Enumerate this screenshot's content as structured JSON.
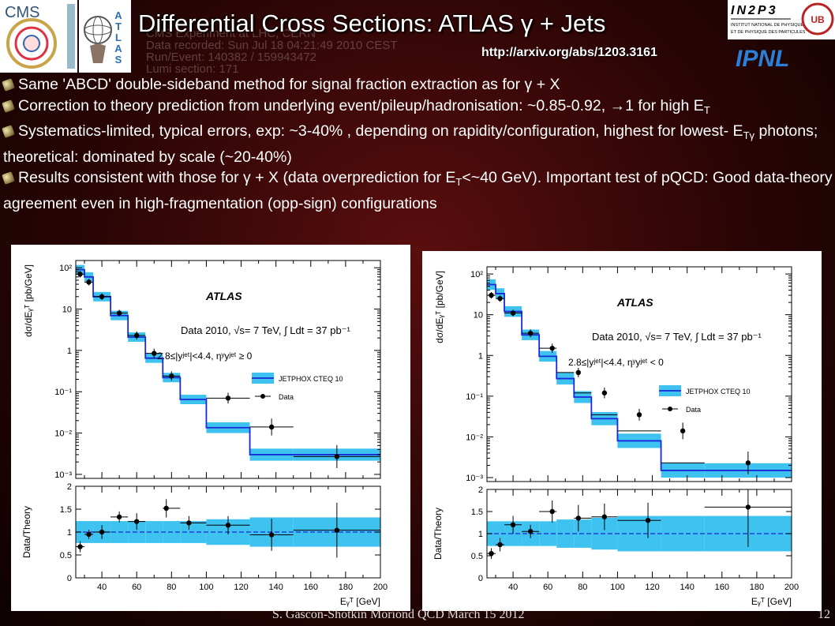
{
  "slide": {
    "title": "Differential Cross Sections: ATLAS γ + Jets",
    "url": "http://arxiv.org/abs/1203.3161",
    "background_event_text": [
      "CMS Experiment at LHC, CERN",
      "Data recorded: Sun Jul 18 04:21:49 2010 CEST",
      "Run/Event: 140382 / 159943472",
      "Lumi section: 171"
    ],
    "footer": "S. Gascon-Shotkin Moriond QCD March 15 2012",
    "page_number": "12",
    "logos": {
      "cms": "CMS",
      "atlas": "ATLAS",
      "in2p3": "IN2P3",
      "ipnl": "IPNL"
    },
    "bullets": [
      {
        "segments": [
          {
            "t": "Same 'ABCD' double-sideband method for signal fraction extraction as for γ + X"
          }
        ]
      },
      {
        "segments": [
          {
            "t": "Correction to theory prediction from underlying event/pileup/hadronisation: ~0.85-0.92, →1 for high E"
          },
          {
            "t": "T",
            "sub": true
          }
        ]
      },
      {
        "segments": [
          {
            "t": "Systematics-limited,   typical errors, exp:  ~3-40% , depending on rapidity/configuration, highest  for lowest- E"
          },
          {
            "t": "Tγ",
            "sub": true
          },
          {
            "t": " photons; theoretical: dominated by scale (~20-40%)"
          }
        ]
      },
      {
        "segments": [
          {
            "t": "Results consistent with those for γ + X (data overprediction for E"
          },
          {
            "t": "T",
            "sub": true
          },
          {
            "t": "<~40 GeV).  Important test of pQCD:  Good data-theory agreement even in high-fragmentation (opp-sign) configurations"
          }
        ]
      }
    ]
  },
  "chart_data": [
    {
      "type": "line",
      "atlas_label": "ATLAS",
      "info_line1": "Data 2010, √s= 7 TeV, ∫ Ldt = 37 pb⁻¹",
      "info_line2": "2.8≤|yʲᵉᵗ|<4.4, ηʸyʲᵉᵗ ≥ 0",
      "legend": [
        "JETPHOX CTEQ 10",
        "Data"
      ],
      "legend_position": "right",
      "xlabel": "Eᵧᵀ [GeV]",
      "ylabel_top": "dσ/dEᵧᵀ [pb/GeV]",
      "ylabel_bottom": "Data/Theory",
      "xlim": [
        25,
        200
      ],
      "ylim_top": [
        0.0008,
        150
      ],
      "ylim_bottom": [
        0,
        2
      ],
      "x_ticks": [
        "40",
        "60",
        "80",
        "100",
        "120",
        "140",
        "160",
        "180",
        "200"
      ],
      "y_ticks_top": [
        "10⁻³",
        "10⁻²",
        "10⁻¹",
        "1",
        "10",
        "10²"
      ],
      "y_ticks_bottom": [
        "0",
        "0.5",
        "1",
        "1.5",
        "2"
      ],
      "bin_edges": [
        25,
        30,
        35,
        45,
        55,
        65,
        75,
        85,
        100,
        125,
        150,
        200
      ],
      "theory": [
        90,
        60,
        20,
        7,
        2.1,
        0.65,
        0.22,
        0.065,
        0.0135,
        0.003,
        0.003
      ],
      "theory_band_frac": [
        0.3,
        0.3,
        0.3,
        0.3,
        0.3,
        0.3,
        0.3,
        0.3,
        0.35,
        0.4,
        0.4
      ],
      "data_x": [
        27.5,
        32.5,
        40,
        50,
        60,
        70,
        80,
        92.5,
        112.5,
        137.5,
        175
      ],
      "data_y": [
        70,
        45,
        20,
        8,
        2.3,
        0.85,
        0.24,
        null,
        0.07,
        0.014,
        0.0027
      ],
      "data_y_err": [
        0.2,
        0.2,
        0.2,
        0.2,
        0.25,
        0.3,
        0.3,
        0.3,
        0.35,
        0.6,
        0.9
      ],
      "ratio_x": [
        27.5,
        32.5,
        40,
        50,
        60,
        77,
        90,
        112.5,
        137.5,
        175
      ],
      "ratio_y": [
        0.68,
        0.95,
        1.0,
        1.33,
        1.23,
        1.52,
        1.2,
        1.15,
        0.94,
        1.04
      ],
      "ratio_err": [
        0.12,
        0.1,
        0.15,
        0.12,
        0.18,
        0.2,
        0.15,
        0.2,
        0.35,
        0.6
      ]
    },
    {
      "type": "line",
      "atlas_label": "ATLAS",
      "info_line1": "Data 2010, √s= 7 TeV, ∫ Ldt = 37 pb⁻¹",
      "info_line2": "2.8≤|yʲᵉᵗ|<4.4, ηʸyʲᵉᵗ < 0",
      "legend": [
        "JETPHOX CTEQ 10",
        "Data"
      ],
      "legend_position": "right",
      "xlabel": "Eᵧᵀ [GeV]",
      "ylabel_top": "dσ/dEᵧᵀ [pb/GeV]",
      "ylabel_bottom": "Data/Theory",
      "xlim": [
        25,
        200
      ],
      "ylim_top": [
        0.0008,
        150
      ],
      "ylim_bottom": [
        0,
        2
      ],
      "x_ticks": [
        "40",
        "60",
        "80",
        "100",
        "120",
        "140",
        "160",
        "180",
        "200"
      ],
      "y_ticks_top": [
        "10⁻³",
        "10⁻²",
        "10⁻¹",
        "1",
        "10",
        "10²"
      ],
      "y_ticks_bottom": [
        "0",
        "0.5",
        "1",
        "1.5",
        "2"
      ],
      "bin_edges": [
        25,
        30,
        35,
        45,
        55,
        65,
        75,
        85,
        100,
        125,
        150,
        200
      ],
      "theory": [
        55,
        33,
        12,
        3.2,
        0.95,
        0.27,
        0.095,
        0.028,
        0.008,
        0.0015,
        0.0015
      ],
      "theory_band_frac": [
        0.35,
        0.35,
        0.35,
        0.35,
        0.35,
        0.4,
        0.4,
        0.45,
        0.5,
        0.5,
        0.5
      ],
      "data_x": [
        27.5,
        32.5,
        40,
        50,
        62.5,
        77.5,
        92.5,
        112.5,
        137.5,
        175
      ],
      "data_y": [
        30,
        25,
        11,
        3.5,
        1.5,
        0.38,
        0.12,
        0.035,
        0.014,
        0.0023
      ],
      "data_y_err": [
        0.2,
        0.2,
        0.2,
        0.25,
        0.3,
        0.3,
        0.35,
        0.4,
        0.6,
        0.9
      ],
      "ratio_x": [
        27.5,
        32.5,
        40,
        50,
        62.5,
        77.5,
        92.5,
        117.5,
        175
      ],
      "ratio_y": [
        0.55,
        0.75,
        1.2,
        1.05,
        1.5,
        1.35,
        1.38,
        1.3,
        1.6
      ],
      "ratio_err": [
        0.12,
        0.15,
        0.2,
        0.15,
        0.25,
        0.3,
        0.3,
        0.4,
        0.9
      ]
    }
  ]
}
